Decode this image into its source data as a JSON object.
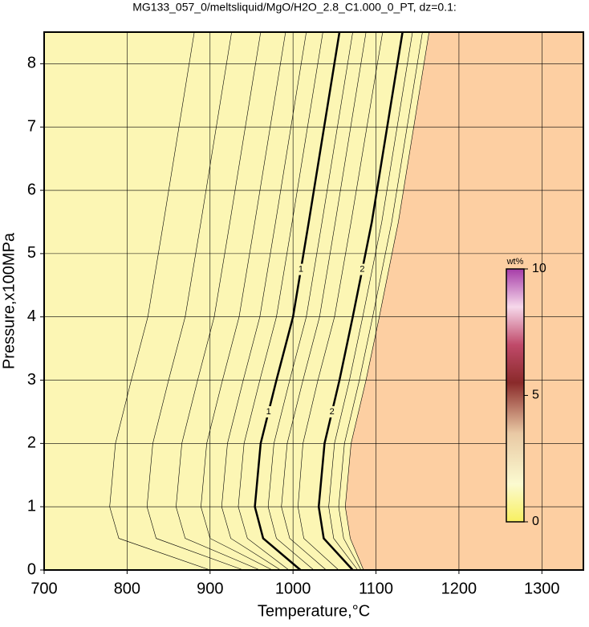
{
  "chart_data": {
    "type": "contour",
    "title": "MG133_057_0/meltsliquid/MgO/H2O_2.8_C1.000_0_PT, dz=0.1:",
    "x_label": "Temperature,°C",
    "y_label": "Pressure,x100MPa",
    "xlim": [
      700,
      1350
    ],
    "ylim": [
      0,
      8.5
    ],
    "xticks": [
      700,
      800,
      900,
      1000,
      1100,
      1200,
      1300
    ],
    "yticks": [
      0,
      1,
      2,
      3,
      4,
      5,
      6,
      7,
      8
    ],
    "grid": true,
    "low_color": "#fcf6b4",
    "high_color": "#fdcfa2",
    "colorbar": {
      "label": "wt%",
      "lim": [
        0,
        10
      ],
      "ticks": [
        0,
        5,
        10
      ]
    },
    "contours": [
      {
        "level": 0.4,
        "bold": false,
        "y": [
          0,
          0.5,
          1,
          2,
          3,
          4,
          5.5,
          8.5
        ],
        "x": [
          900,
          790,
          779,
          786,
          805,
          825,
          844,
          881
        ]
      },
      {
        "level": 0.5,
        "bold": false,
        "y": [
          0,
          0.5,
          1,
          2,
          3,
          4,
          5.5,
          8.5
        ],
        "x": [
          940,
          835,
          824,
          831,
          850,
          870,
          889,
          926
        ]
      },
      {
        "level": 0.6,
        "bold": false,
        "y": [
          0,
          0.5,
          1,
          2,
          3,
          4,
          5.5,
          8.5
        ],
        "x": [
          960,
          870,
          859,
          866,
          885,
          905,
          924,
          961
        ]
      },
      {
        "level": 0.7,
        "bold": false,
        "y": [
          0,
          0.5,
          1,
          2,
          3,
          4,
          5.5,
          8.5
        ],
        "x": [
          975,
          900,
          889,
          896,
          915,
          935,
          954,
          991
        ]
      },
      {
        "level": 0.8,
        "bold": false,
        "y": [
          0,
          0.5,
          1,
          2,
          3,
          4,
          5.5,
          8.5
        ],
        "x": [
          985,
          925,
          914,
          921,
          940,
          960,
          979,
          1016
        ]
      },
      {
        "level": 0.9,
        "bold": false,
        "y": [
          0,
          0.5,
          1,
          2,
          3,
          4,
          5.5,
          8.5
        ],
        "x": [
          995,
          945,
          934,
          941,
          960,
          980,
          999,
          1036
        ]
      },
      {
        "level": 1,
        "bold": true,
        "y": [
          0,
          0.5,
          1,
          2,
          3,
          4,
          5.5,
          8.5
        ],
        "x": [
          1009,
          964,
          954,
          961,
          980,
          1000,
          1019,
          1056
        ]
      },
      {
        "level": 1.25,
        "bold": false,
        "y": [
          0,
          0.5,
          1,
          2,
          3,
          4,
          5.5,
          8.5
        ],
        "x": [
          1025,
          980,
          970,
          977,
          996,
          1016,
          1035,
          1072
        ]
      },
      {
        "level": 1.5,
        "bold": false,
        "y": [
          0,
          0.5,
          1,
          2,
          3,
          4,
          5.5,
          8.5
        ],
        "x": [
          1040,
          996,
          986,
          993,
          1012,
          1032,
          1051,
          1088
        ]
      },
      {
        "level": 1.75,
        "bold": false,
        "y": [
          0,
          0.5,
          1,
          2,
          3,
          4,
          5.5,
          8.5
        ],
        "x": [
          1055,
          1013,
          1006,
          1012,
          1030,
          1050,
          1070,
          1108
        ]
      },
      {
        "level": 2,
        "bold": true,
        "y": [
          0,
          0.5,
          1,
          2,
          3,
          4,
          5.5,
          8.5
        ],
        "x": [
          1072,
          1037,
          1031,
          1038,
          1056,
          1072,
          1095,
          1132
        ]
      },
      {
        "level": 3,
        "bold": false,
        "y": [
          0,
          0.5,
          1,
          2,
          3,
          4,
          5.5,
          8.5
        ],
        "x": [
          1078,
          1049,
          1043,
          1050,
          1068,
          1084,
          1107,
          1144
        ]
      },
      {
        "level": 4,
        "bold": false,
        "y": [
          0,
          0.5,
          1,
          2,
          3,
          4,
          5.5,
          8.5
        ],
        "x": [
          1082,
          1061,
          1055,
          1062,
          1080,
          1096,
          1119,
          1156
        ]
      },
      {
        "level": 5,
        "bold": false,
        "y": [
          0,
          0.5,
          1,
          2,
          3,
          4,
          5.5,
          8.5
        ],
        "x": [
          1085,
          1069,
          1063,
          1070,
          1088,
          1104,
          1127,
          1164
        ]
      }
    ]
  }
}
